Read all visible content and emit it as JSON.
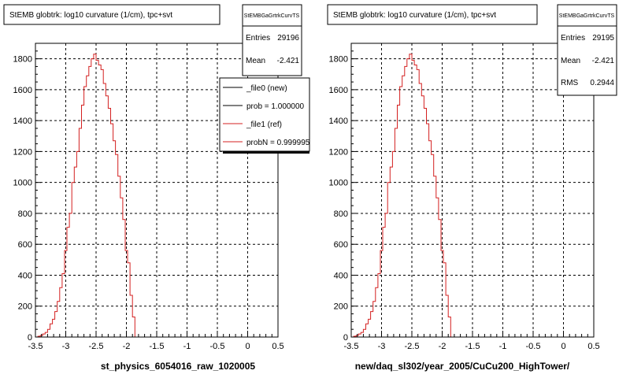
{
  "footer_note": "",
  "colors": {
    "ref_line": "#d42020",
    "new_line": "#000000",
    "grid": "#000000",
    "frame": "#000000"
  },
  "chart_data": [
    {
      "type": "line",
      "title": "StEMB globtrk: log10 curvature (1/cm), tpc+svt",
      "xlabel": "st_physics_6054016_raw_1020005",
      "ylabel": "",
      "xlim": [
        -3.5,
        0.5
      ],
      "ylim": [
        0,
        1900
      ],
      "xticks": [
        "-3.5",
        "-3",
        "-2.5",
        "-2",
        "-1.5",
        "-1",
        "-0.5",
        "0",
        "0.5"
      ],
      "yticks": [
        "0",
        "200",
        "400",
        "600",
        "800",
        "1000",
        "1200",
        "1400",
        "1600",
        "1800"
      ],
      "grid": true,
      "stats": {
        "name": "StEMBGaGrtrkCurvTS",
        "rows": [
          {
            "label": "Entries",
            "value": "29196"
          },
          {
            "label": "Mean",
            "value": "-2.421"
          }
        ]
      },
      "legend": {
        "placement": "top-right",
        "entries": [
          {
            "label": "_file0 (new)",
            "color": "#000000"
          },
          {
            "label": "prob = 1.000000",
            "color": "#000000"
          },
          {
            "label": "_file1 (ref)",
            "color": "#d42020"
          },
          {
            "label": "probN = 0.999995",
            "color": "#d42020"
          }
        ]
      },
      "bin_width": 0.04,
      "series": [
        {
          "name": "_file1 (ref)",
          "x": [
            -3.44,
            -3.4,
            -3.36,
            -3.32,
            -3.28,
            -3.24,
            -3.2,
            -3.16,
            -3.12,
            -3.08,
            -3.04,
            -3.0,
            -2.96,
            -2.92,
            -2.88,
            -2.84,
            -2.8,
            -2.76,
            -2.72,
            -2.68,
            -2.64,
            -2.6,
            -2.56,
            -2.52,
            -2.48,
            -2.44,
            -2.4,
            -2.36,
            -2.32,
            -2.28,
            -2.24,
            -2.2,
            -2.16,
            -2.12,
            -2.08,
            -2.04,
            -2.0,
            -1.96,
            -1.92,
            -1.88,
            -1.84,
            -1.8
          ],
          "values": [
            5,
            10,
            20,
            30,
            50,
            85,
            115,
            165,
            230,
            320,
            410,
            560,
            710,
            800,
            1000,
            1100,
            1200,
            1350,
            1500,
            1620,
            1690,
            1750,
            1800,
            1830,
            1790,
            1760,
            1730,
            1640,
            1560,
            1480,
            1380,
            1270,
            1180,
            1040,
            900,
            760,
            560,
            480,
            270,
            130,
            0,
            0
          ]
        }
      ]
    },
    {
      "type": "line",
      "title": "StEMB globtrk: log10 curvature (1/cm), tpc+svt",
      "xlabel": "new/daq_sl302/year_2005/CuCu200_HighTower/",
      "ylabel": "",
      "xlim": [
        -3.5,
        0.5
      ],
      "ylim": [
        0,
        1900
      ],
      "xticks": [
        "-3.5",
        "-3",
        "-2.5",
        "-2",
        "-1.5",
        "-1",
        "-0.5",
        "0",
        "0.5"
      ],
      "yticks": [
        "0",
        "200",
        "400",
        "600",
        "800",
        "1000",
        "1200",
        "1400",
        "1600",
        "1800"
      ],
      "grid": true,
      "stats": {
        "name": "StEMBGaGrtrkCurvTS",
        "rows": [
          {
            "label": "Entries",
            "value": "29195"
          },
          {
            "label": "Mean",
            "value": "-2.421"
          },
          {
            "label": "RMS",
            "value": "0.2944"
          }
        ]
      },
      "bin_width": 0.04,
      "series": [
        {
          "name": "",
          "x": [
            -3.44,
            -3.4,
            -3.36,
            -3.32,
            -3.28,
            -3.24,
            -3.2,
            -3.16,
            -3.12,
            -3.08,
            -3.04,
            -3.0,
            -2.96,
            -2.92,
            -2.88,
            -2.84,
            -2.8,
            -2.76,
            -2.72,
            -2.68,
            -2.64,
            -2.6,
            -2.56,
            -2.52,
            -2.48,
            -2.44,
            -2.4,
            -2.36,
            -2.32,
            -2.28,
            -2.24,
            -2.2,
            -2.16,
            -2.12,
            -2.08,
            -2.04,
            -2.0,
            -1.96,
            -1.92,
            -1.88,
            -1.84,
            -1.8
          ],
          "values": [
            5,
            10,
            20,
            30,
            50,
            85,
            115,
            165,
            230,
            320,
            410,
            560,
            710,
            800,
            1000,
            1100,
            1200,
            1350,
            1500,
            1620,
            1690,
            1750,
            1800,
            1830,
            1790,
            1760,
            1730,
            1640,
            1560,
            1480,
            1380,
            1270,
            1180,
            1040,
            900,
            760,
            560,
            480,
            270,
            130,
            0,
            0
          ]
        }
      ]
    }
  ]
}
